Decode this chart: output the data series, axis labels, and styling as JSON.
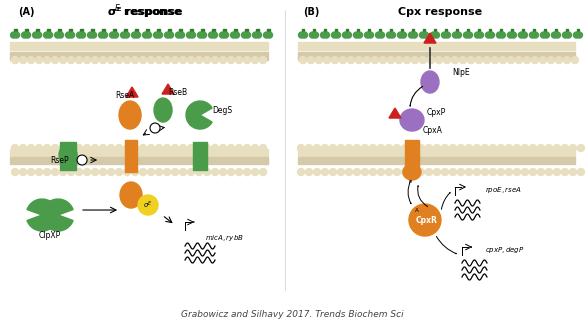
{
  "fig_width": 5.85,
  "fig_height": 3.26,
  "dpi": 100,
  "bg_color": "#ffffff",
  "title_A": "σᴱ response",
  "title_B": "Cpx response",
  "label_A": "(A)",
  "label_B": "(B)",
  "caption": "Grabowicz and Silhavy 2017. Trends Biochem Sci",
  "colors": {
    "green": "#4a9c4a",
    "dark_green": "#2d7a2d",
    "orange": "#e08020",
    "yellow": "#f0d020",
    "purple": "#9b70c0",
    "red": "#cc2020",
    "light_tan": "#f5f0e8",
    "membrane_beige": "#d4c9a8",
    "membrane_green_line": "#4a9c4a",
    "gray": "#808080"
  }
}
